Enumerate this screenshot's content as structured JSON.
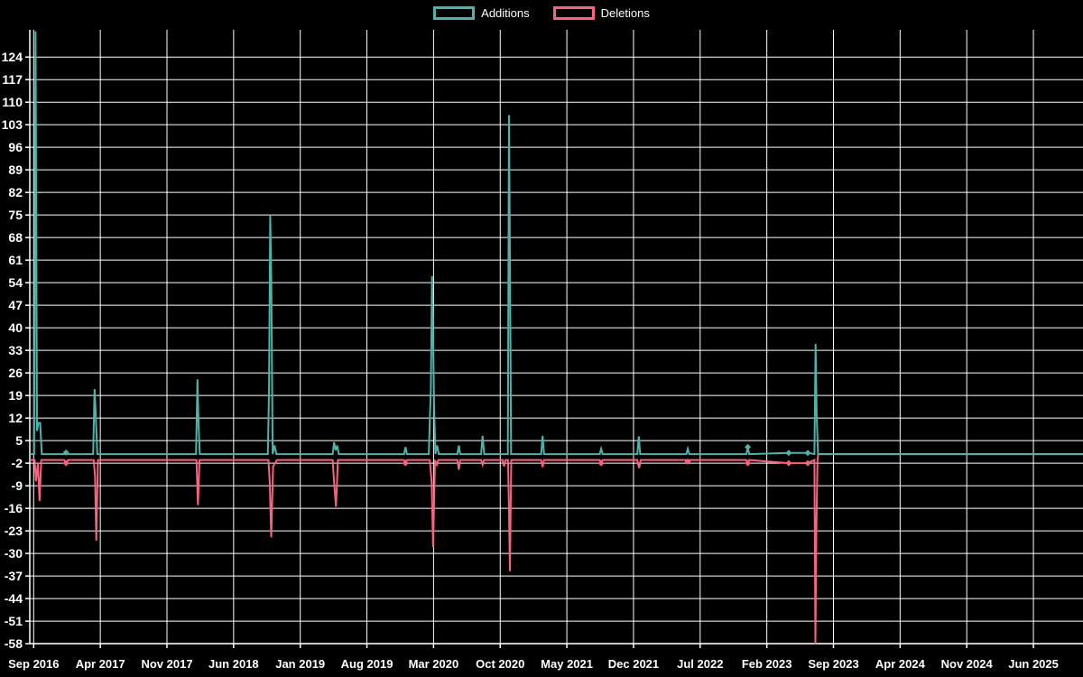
{
  "legend": {
    "additions_label": "Additions",
    "deletions_label": "Deletions"
  },
  "colors": {
    "additions": "#4db3ab",
    "deletions": "#f8637f",
    "grid": "#ffffff",
    "axis": "#ffffff",
    "background": "#000000",
    "text": "#ffffff"
  },
  "chart_data": {
    "type": "line",
    "title": "",
    "xlabel": "",
    "ylabel": "",
    "grid": true,
    "legend_position": "top-center",
    "x_unit": "months since Sep 2016, weekly data",
    "x_axis_labels": [
      "Sep 2016",
      "Apr 2017",
      "Nov 2017",
      "Jun 2018",
      "Jan 2019",
      "Aug 2019",
      "Mar 2020",
      "Oct 2020",
      "May 2021",
      "Dec 2021",
      "Jul 2022",
      "Feb 2023",
      "Sep 2023",
      "Apr 2024",
      "Nov 2024",
      "Jun 2025"
    ],
    "x_label_interval_months": 7,
    "y_axis_ticks": [
      124,
      117,
      110,
      103,
      96,
      89,
      82,
      75,
      68,
      61,
      54,
      47,
      40,
      33,
      26,
      19,
      12,
      5,
      -2,
      -9,
      -16,
      -23,
      -30,
      -37,
      -44,
      -51,
      -58
    ],
    "ylim": [
      -58,
      132
    ],
    "series": [
      {
        "name": "Additions",
        "color_key": "additions",
        "points": [
          [
            -0.4,
            0.8
          ],
          [
            0.05,
            0.8
          ],
          [
            0.2,
            132
          ],
          [
            0.35,
            8
          ],
          [
            0.5,
            10.5
          ],
          [
            0.68,
            10.5
          ],
          [
            0.85,
            0.8
          ],
          [
            3.2,
            0.8
          ],
          [
            3.4,
            1.3
          ],
          [
            3.6,
            0.8
          ],
          [
            6.25,
            0.8
          ],
          [
            6.4,
            21
          ],
          [
            6.52,
            13
          ],
          [
            6.68,
            0.8
          ],
          [
            17.05,
            0.8
          ],
          [
            17.2,
            24
          ],
          [
            17.32,
            10
          ],
          [
            17.45,
            0.8
          ],
          [
            24.6,
            0.8
          ],
          [
            24.72,
            21
          ],
          [
            24.84,
            75
          ],
          [
            24.96,
            55
          ],
          [
            25.1,
            0.8
          ],
          [
            25.3,
            3.5
          ],
          [
            25.5,
            0.8
          ],
          [
            31.4,
            0.8
          ],
          [
            31.55,
            4.5
          ],
          [
            31.72,
            2
          ],
          [
            31.88,
            3.5
          ],
          [
            32.05,
            0.8
          ],
          [
            38.9,
            0.8
          ],
          [
            39.05,
            3
          ],
          [
            39.2,
            0.8
          ],
          [
            41.5,
            0.8
          ],
          [
            41.62,
            13
          ],
          [
            41.72,
            21
          ],
          [
            41.84,
            56
          ],
          [
            41.96,
            34
          ],
          [
            42.08,
            13
          ],
          [
            42.2,
            0.8
          ],
          [
            42.38,
            3.5
          ],
          [
            42.55,
            0.8
          ],
          [
            44.5,
            0.8
          ],
          [
            44.65,
            3.5
          ],
          [
            44.8,
            0.8
          ],
          [
            47.0,
            0.8
          ],
          [
            47.15,
            6.5
          ],
          [
            47.32,
            0.8
          ],
          [
            49.8,
            0.8
          ],
          [
            49.92,
            106
          ],
          [
            50.02,
            63
          ],
          [
            50.14,
            0.8
          ],
          [
            53.3,
            0.8
          ],
          [
            53.45,
            6.5
          ],
          [
            53.6,
            0.8
          ],
          [
            59.45,
            0.8
          ],
          [
            59.6,
            2.5
          ],
          [
            59.75,
            0.8
          ],
          [
            63.4,
            0.8
          ],
          [
            63.55,
            6.3
          ],
          [
            63.7,
            0.8
          ],
          [
            68.55,
            0.8
          ],
          [
            68.7,
            2.5
          ],
          [
            68.85,
            0.8
          ],
          [
            74.85,
            0.8
          ],
          [
            75.0,
            3
          ],
          [
            75.15,
            0.8
          ],
          [
            79.3,
            1.2
          ],
          [
            81.3,
            1.2
          ],
          [
            82.0,
            0.8
          ],
          [
            82.12,
            35
          ],
          [
            82.24,
            13
          ],
          [
            82.38,
            0.8
          ],
          [
            110.2,
            0.8
          ]
        ]
      },
      {
        "name": "Deletions",
        "color_key": "deletions",
        "points": [
          [
            -0.4,
            -1
          ],
          [
            0.1,
            -1
          ],
          [
            0.25,
            -7.6
          ],
          [
            0.45,
            -2
          ],
          [
            0.62,
            -13.7
          ],
          [
            0.8,
            -1
          ],
          [
            3.2,
            -1
          ],
          [
            3.4,
            -2
          ],
          [
            3.6,
            -1
          ],
          [
            6.3,
            -1
          ],
          [
            6.45,
            -6
          ],
          [
            6.58,
            -26
          ],
          [
            6.75,
            -1
          ],
          [
            17.1,
            -1
          ],
          [
            17.25,
            -15
          ],
          [
            17.42,
            -1
          ],
          [
            24.65,
            -1
          ],
          [
            24.8,
            -8
          ],
          [
            24.95,
            -25
          ],
          [
            25.15,
            -3
          ],
          [
            25.35,
            -2
          ],
          [
            25.55,
            -1
          ],
          [
            31.4,
            -1
          ],
          [
            31.55,
            -8
          ],
          [
            31.75,
            -15.5
          ],
          [
            31.95,
            -1
          ],
          [
            38.9,
            -1
          ],
          [
            39.05,
            -2
          ],
          [
            39.2,
            -1
          ],
          [
            41.6,
            -1
          ],
          [
            41.8,
            -8
          ],
          [
            41.95,
            -28
          ],
          [
            42.15,
            -1
          ],
          [
            42.35,
            -2.5
          ],
          [
            42.5,
            -1
          ],
          [
            44.5,
            -1
          ],
          [
            44.65,
            -4
          ],
          [
            44.8,
            -1
          ],
          [
            47.0,
            -1
          ],
          [
            47.15,
            -2.5
          ],
          [
            47.3,
            -1
          ],
          [
            49.25,
            -1
          ],
          [
            49.4,
            -3
          ],
          [
            49.55,
            -1
          ],
          [
            49.82,
            -1
          ],
          [
            49.92,
            -17
          ],
          [
            50.02,
            -35.5
          ],
          [
            50.16,
            -1
          ],
          [
            53.3,
            -1
          ],
          [
            53.45,
            -3.2
          ],
          [
            53.6,
            -1
          ],
          [
            59.45,
            -1
          ],
          [
            59.6,
            -2
          ],
          [
            59.75,
            -1
          ],
          [
            63.4,
            -1
          ],
          [
            63.5,
            -2.5
          ],
          [
            63.6,
            -3.5
          ],
          [
            63.75,
            -1
          ],
          [
            68.55,
            -1
          ],
          [
            68.7,
            -1.5
          ],
          [
            68.85,
            -1
          ],
          [
            74.85,
            -1
          ],
          [
            75.0,
            -2
          ],
          [
            75.15,
            -1
          ],
          [
            79.3,
            -2
          ],
          [
            81.3,
            -2
          ],
          [
            82.0,
            -1
          ],
          [
            82.1,
            -58
          ],
          [
            82.2,
            -24
          ],
          [
            82.32,
            -1
          ],
          [
            82.4,
            0.8
          ],
          [
            110.2,
            0.8
          ]
        ]
      }
    ],
    "markers": [
      {
        "m": 3.4,
        "v": 1.3,
        "series": "additions"
      },
      {
        "m": 3.4,
        "v": -2,
        "series": "deletions"
      },
      {
        "m": 39.05,
        "v": -2,
        "series": "deletions"
      },
      {
        "m": 59.6,
        "v": -2,
        "series": "deletions"
      },
      {
        "m": 68.7,
        "v": -1.5,
        "series": "deletions"
      },
      {
        "m": 75.0,
        "v": 3,
        "series": "additions"
      },
      {
        "m": 75.0,
        "v": -2,
        "series": "deletions"
      },
      {
        "m": 79.3,
        "v": 1.2,
        "series": "additions"
      },
      {
        "m": 79.3,
        "v": -2,
        "series": "deletions"
      },
      {
        "m": 81.3,
        "v": 1.2,
        "series": "additions"
      },
      {
        "m": 81.3,
        "v": -2,
        "series": "deletions"
      }
    ]
  }
}
